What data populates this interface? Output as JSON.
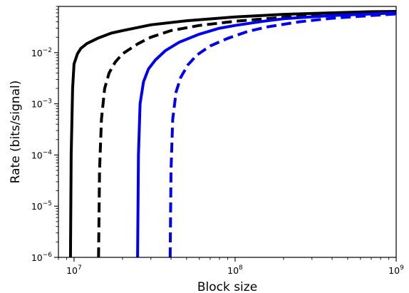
{
  "chart_data": {
    "type": "line",
    "xlabel": "Block size",
    "ylabel": "Rate (bits/signal)",
    "xscale": "log",
    "yscale": "log",
    "xlim": [
      8000000,
      1000000000
    ],
    "ylim": [
      1e-06,
      0.08
    ],
    "x_ticks": [
      {
        "value": 10000000,
        "base": "10",
        "exp": "7"
      },
      {
        "value": 100000000,
        "base": "10",
        "exp": "8"
      },
      {
        "value": 1000000000,
        "base": "10",
        "exp": "9"
      }
    ],
    "y_ticks": [
      {
        "value": 1e-06,
        "base": "10",
        "exp": "−6"
      },
      {
        "value": 1e-05,
        "base": "10",
        "exp": "−5"
      },
      {
        "value": 0.0001,
        "base": "10",
        "exp": "−4"
      },
      {
        "value": 0.001,
        "base": "10",
        "exp": "−3"
      },
      {
        "value": 0.01,
        "base": "10",
        "exp": "−2"
      }
    ],
    "grid": false,
    "legend": "none",
    "series": [
      {
        "color": "#000000",
        "dash": "solid",
        "x": [
          9500000,
          9600000,
          9800000,
          10000000,
          10500000,
          11000000,
          12000000,
          14000000,
          17000000,
          20000000,
          30000000,
          50000000,
          100000000,
          200000000,
          400000000,
          700000000,
          1000000000
        ],
        "y": [
          1e-06,
          0.0001,
          0.002,
          0.006,
          0.0095,
          0.012,
          0.015,
          0.019,
          0.024,
          0.027,
          0.035,
          0.042,
          0.05,
          0.056,
          0.06,
          0.063,
          0.064
        ]
      },
      {
        "color": "#000000",
        "dash": "dashed",
        "x": [
          14200000,
          14400000,
          14800000,
          15500000,
          16500000,
          18000000,
          20000000,
          25000000,
          30000000,
          40000000,
          60000000,
          100000000,
          200000000,
          400000000,
          700000000,
          1000000000
        ],
        "y": [
          1e-06,
          5e-05,
          0.0005,
          0.002,
          0.004,
          0.0065,
          0.0095,
          0.015,
          0.02,
          0.027,
          0.034,
          0.041,
          0.049,
          0.055,
          0.059,
          0.061
        ]
      },
      {
        "color": "#0000ee",
        "dash": "solid",
        "x": [
          24800000,
          25100000,
          25700000,
          27000000,
          29000000,
          32000000,
          37000000,
          45000000,
          60000000,
          80000000,
          100000000,
          150000000,
          200000000,
          400000000,
          700000000,
          1000000000
        ],
        "y": [
          1e-06,
          0.0001,
          0.001,
          0.0027,
          0.0048,
          0.0072,
          0.011,
          0.016,
          0.023,
          0.03,
          0.034,
          0.041,
          0.046,
          0.053,
          0.057,
          0.06
        ]
      },
      {
        "color": "#0000ee",
        "dash": "dashed",
        "x": [
          39500000,
          40000000,
          41000000,
          43000000,
          46000000,
          51000000,
          58000000,
          70000000,
          90000000,
          120000000,
          160000000,
          250000000,
          400000000,
          700000000,
          1000000000
        ],
        "y": [
          1e-06,
          5e-05,
          0.0005,
          0.0017,
          0.0033,
          0.0058,
          0.009,
          0.0135,
          0.019,
          0.026,
          0.032,
          0.04,
          0.047,
          0.053,
          0.057
        ]
      }
    ]
  }
}
